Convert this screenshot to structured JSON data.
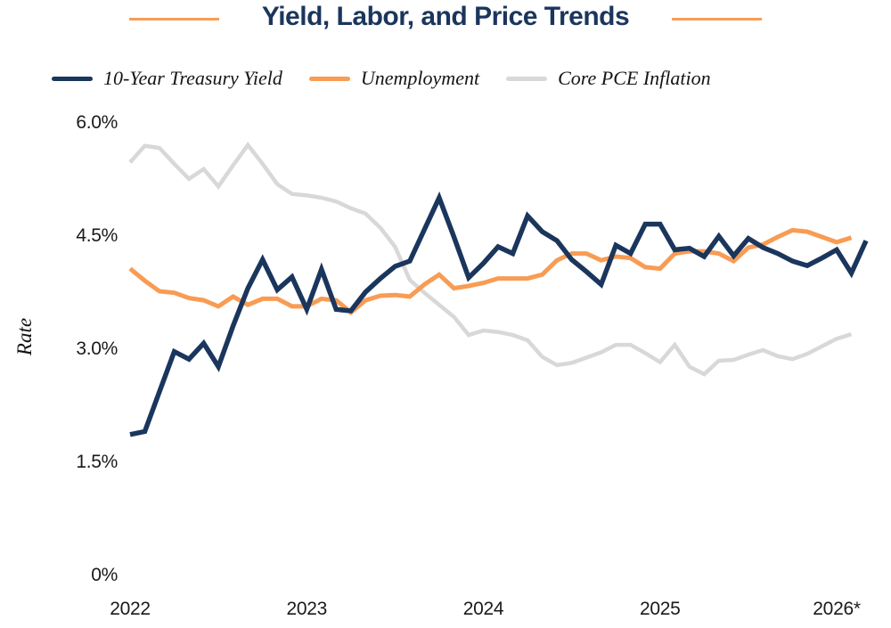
{
  "chart_data": {
    "type": "line",
    "title": "Yield, Labor, and Price Trends",
    "xlabel": "",
    "ylabel": "Rate",
    "ylim": [
      0,
      6.0
    ],
    "y_ticks": [
      {
        "label": "0%",
        "value": 0
      },
      {
        "label": "1.5%",
        "value": 1.5
      },
      {
        "label": "3.0%",
        "value": 3.0
      },
      {
        "label": "4.5%",
        "value": 4.5
      },
      {
        "label": "6.0%",
        "value": 6.0
      }
    ],
    "x_ticks": [
      {
        "label": "2022",
        "year": 2022
      },
      {
        "label": "2023",
        "year": 2023
      },
      {
        "label": "2024",
        "year": 2024
      },
      {
        "label": "2025",
        "year": 2025
      },
      {
        "label": "2026*",
        "year": 2026
      }
    ],
    "grid": false,
    "legend_position": "top",
    "x_cadence": "monthly",
    "x_start_year": 2022,
    "series": [
      {
        "name": "10-Year Treasury Yield",
        "color": "#1b365d",
        "values": [
          1.88,
          1.92,
          2.45,
          2.98,
          2.88,
          3.09,
          2.78,
          3.32,
          3.82,
          4.2,
          3.8,
          3.97,
          3.54,
          4.07,
          3.54,
          3.52,
          3.77,
          3.95,
          4.11,
          4.18,
          4.6,
          5.02,
          4.5,
          3.96,
          4.15,
          4.37,
          4.28,
          4.78,
          4.57,
          4.45,
          4.2,
          4.04,
          3.87,
          4.39,
          4.28,
          4.67,
          4.67,
          4.33,
          4.35,
          4.24,
          4.51,
          4.25,
          4.48,
          4.36,
          4.28,
          4.18,
          4.12,
          4.22,
          4.33,
          4.02,
          4.45
        ]
      },
      {
        "name": "Unemployment",
        "color": "#f89c54",
        "values": [
          4.08,
          3.92,
          3.78,
          3.76,
          3.69,
          3.66,
          3.58,
          3.71,
          3.6,
          3.68,
          3.68,
          3.58,
          3.58,
          3.68,
          3.66,
          3.5,
          3.66,
          3.72,
          3.73,
          3.71,
          3.87,
          4.0,
          3.82,
          3.85,
          3.89,
          3.95,
          3.95,
          3.95,
          4.0,
          4.19,
          4.28,
          4.28,
          4.19,
          4.24,
          4.22,
          4.1,
          4.08,
          4.28,
          4.31,
          4.31,
          4.28,
          4.18,
          4.36,
          4.4,
          4.5,
          4.59,
          4.57,
          4.5,
          4.43,
          4.49
        ]
      },
      {
        "name": "Core PCE Inflation",
        "color": "#d8d8d8",
        "values": [
          5.49,
          5.71,
          5.68,
          5.47,
          5.27,
          5.4,
          5.17,
          5.45,
          5.72,
          5.47,
          5.2,
          5.07,
          5.05,
          5.02,
          4.97,
          4.88,
          4.81,
          4.62,
          4.37,
          3.93,
          3.76,
          3.6,
          3.44,
          3.2,
          3.26,
          3.24,
          3.2,
          3.13,
          2.91,
          2.8,
          2.83,
          2.9,
          2.97,
          3.07,
          3.07,
          2.96,
          2.84,
          3.07,
          2.78,
          2.68,
          2.86,
          2.87,
          2.94,
          3.0,
          2.92,
          2.88,
          2.95,
          3.05,
          3.15,
          3.21
        ]
      }
    ]
  }
}
